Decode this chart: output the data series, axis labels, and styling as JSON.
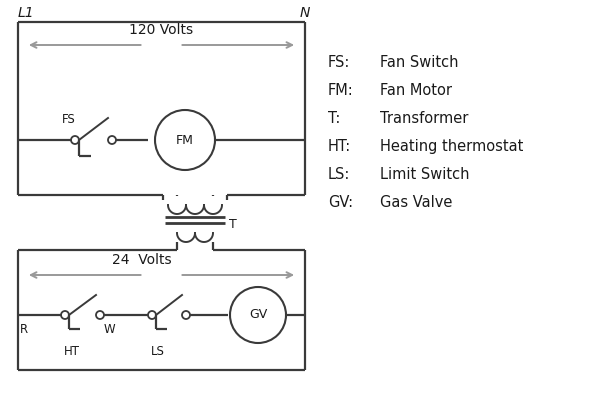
{
  "bg_color": "#ffffff",
  "line_color": "#3a3a3a",
  "text_color": "#1a1a1a",
  "fig_width": 5.9,
  "fig_height": 4.0,
  "legend": {
    "entries": [
      [
        "FS:",
        "Fan Switch"
      ],
      [
        "FM:",
        "Fan Motor"
      ],
      [
        "T:",
        "Transformer"
      ],
      [
        "HT:",
        "Heating thermostat"
      ],
      [
        "LS:",
        "Limit Switch"
      ],
      [
        "GV:",
        "Gas Valve"
      ]
    ]
  }
}
